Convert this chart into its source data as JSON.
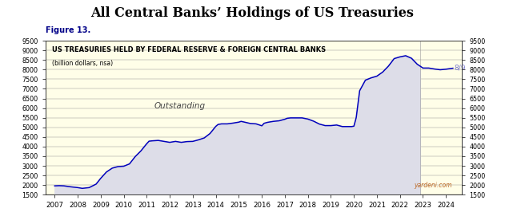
{
  "title": "All Central Banks’ Holdings of US Treasuries",
  "figure_label": "Figure 13.",
  "subtitle": "US TREASURIES HELD BY FEDERAL RESERVE & FOREIGN CENTRAL BANKS",
  "subtitle2": "(billion dollars, nsa)",
  "outstanding_label": "Outstanding",
  "annotation": "8/9",
  "watermark": "yardeni.com",
  "ylim": [
    1500,
    9500
  ],
  "yticks": [
    1500,
    2000,
    2500,
    3000,
    3500,
    4000,
    4500,
    5000,
    5500,
    6000,
    6500,
    7000,
    7500,
    8000,
    8500,
    9000,
    9500
  ],
  "bg_color_main": "#FFFEE8",
  "fill_color": "#DDDDE8",
  "line_color": "#0000BB",
  "annotation_color": "#7777CC",
  "watermark_color": "#BB6622",
  "recent_cutoff_x": 2022.87,
  "xlim_left": 2006.6,
  "xlim_right": 2024.7,
  "x_data": [
    2007.0,
    2007.2,
    2007.4,
    2007.7,
    2008.0,
    2008.2,
    2008.5,
    2008.8,
    2009.0,
    2009.25,
    2009.5,
    2009.75,
    2010.0,
    2010.25,
    2010.5,
    2010.75,
    2011.0,
    2011.1,
    2011.25,
    2011.5,
    2011.75,
    2012.0,
    2012.25,
    2012.5,
    2012.75,
    2013.0,
    2013.25,
    2013.5,
    2013.75,
    2014.0,
    2014.1,
    2014.25,
    2014.5,
    2014.75,
    2015.0,
    2015.1,
    2015.25,
    2015.5,
    2015.75,
    2016.0,
    2016.1,
    2016.25,
    2016.5,
    2016.75,
    2017.0,
    2017.1,
    2017.25,
    2017.5,
    2017.75,
    2018.0,
    2018.25,
    2018.5,
    2018.75,
    2019.0,
    2019.25,
    2019.5,
    2019.75,
    2019.9,
    2020.0,
    2020.1,
    2020.25,
    2020.5,
    2020.75,
    2021.0,
    2021.25,
    2021.5,
    2021.75,
    2022.0,
    2022.25,
    2022.5,
    2022.75,
    2023.0,
    2023.25,
    2023.5,
    2023.75,
    2024.0,
    2024.3
  ],
  "y_data": [
    1960,
    1970,
    1960,
    1910,
    1870,
    1830,
    1870,
    2050,
    2350,
    2680,
    2880,
    2960,
    2980,
    3100,
    3480,
    3780,
    4150,
    4280,
    4300,
    4320,
    4270,
    4220,
    4270,
    4220,
    4260,
    4270,
    4350,
    4450,
    4680,
    5050,
    5150,
    5180,
    5180,
    5220,
    5270,
    5310,
    5270,
    5200,
    5180,
    5080,
    5210,
    5260,
    5310,
    5340,
    5420,
    5470,
    5490,
    5490,
    5490,
    5430,
    5320,
    5170,
    5090,
    5090,
    5120,
    5040,
    5040,
    5040,
    5060,
    5500,
    6900,
    7450,
    7570,
    7660,
    7870,
    8180,
    8570,
    8660,
    8720,
    8590,
    8280,
    8080,
    8080,
    8030,
    7990,
    8020,
    8070
  ]
}
